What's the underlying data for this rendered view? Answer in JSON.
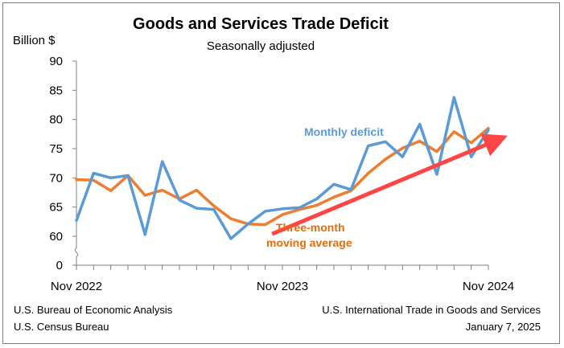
{
  "chart_data": {
    "type": "line",
    "title": "Goods and Services Trade Deficit",
    "subtitle": "Seasonally adjusted",
    "ylabel": "Billion $",
    "ylim": [
      0,
      90
    ],
    "y_axis_break": [
      0,
      57.5
    ],
    "yticks": [
      0,
      60,
      65,
      70,
      75,
      80,
      85,
      90
    ],
    "x_tick_labels": [
      "Nov 2022",
      "Nov 2023",
      "Nov 2024"
    ],
    "x_tick_label_indices": [
      0,
      12,
      24
    ],
    "categories": [
      "Nov 2022",
      "Dec 2022",
      "Jan 2023",
      "Feb 2023",
      "Mar 2023",
      "Apr 2023",
      "May 2023",
      "Jun 2023",
      "Jul 2023",
      "Aug 2023",
      "Sep 2023",
      "Oct 2023",
      "Nov 2023",
      "Dec 2023",
      "Jan 2024",
      "Feb 2024",
      "Mar 2024",
      "Apr 2024",
      "May 2024",
      "Jun 2024",
      "Jul 2024",
      "Aug 2024",
      "Sep 2024",
      "Oct 2024",
      "Nov 2024"
    ],
    "series": [
      {
        "name": "Monthly deficit",
        "color": "#5b9bd5",
        "values": [
          62.7,
          70.8,
          70.0,
          70.4,
          60.3,
          72.8,
          66.2,
          64.8,
          64.6,
          59.6,
          62.1,
          64.3,
          64.7,
          64.9,
          66.4,
          68.9,
          68.0,
          75.5,
          76.2,
          73.6,
          79.2,
          70.6,
          83.8,
          73.6,
          78.2
        ]
      },
      {
        "name": "Three-month moving average",
        "color": "#ed7d31",
        "values": [
          69.7,
          69.6,
          67.8,
          70.4,
          67.0,
          67.9,
          66.4,
          67.9,
          65.2,
          63.0,
          62.1,
          62.0,
          63.7,
          64.6,
          65.3,
          66.7,
          67.8,
          70.8,
          73.2,
          75.1,
          76.3,
          74.5,
          77.9,
          76.0,
          78.5
        ]
      }
    ],
    "annotations": {
      "monthly_label": "Monthly deficit",
      "average_label_line1": "Three-month",
      "average_label_line2": "moving average"
    },
    "trend_arrow": {
      "color": "#ff4545",
      "from": {
        "x_index": 11.4,
        "y": 60.4
      },
      "to": {
        "x_index": 24.8,
        "y": 76.9
      }
    },
    "colors": {
      "axis": "#7f7f7f",
      "monthly": "#5b9bd5",
      "average": "#ed7d31",
      "arrow": "#ff4545",
      "monthly_label": "#5b9bd5",
      "average_label": "#e46c0a"
    }
  },
  "footer": {
    "left_line1": "U.S. Bureau of Economic Analysis",
    "left_line2": "U.S. Census Bureau",
    "right_line1": "U.S. International Trade in Goods and Services",
    "right_line2": "January 7, 2025"
  }
}
